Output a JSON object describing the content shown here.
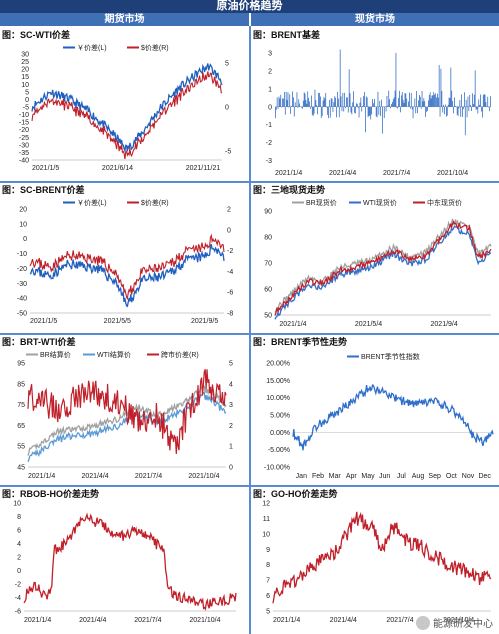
{
  "banner": "原油价格趋势",
  "left_header": "期货市场",
  "right_header": "现货市场",
  "watermark": "能源研发中心",
  "charts": [
    {
      "id": "sc-wti",
      "title": "图：SC-WTI价差",
      "type": "line",
      "legend": [
        "￥价差(L)",
        "$价差(R)"
      ],
      "colors": [
        "#1f5fbf",
        "#c0202a"
      ],
      "x_ticks": [
        "2021/1/5",
        "2021/6/14",
        "2021/11/21"
      ],
      "y_left": [
        -40,
        -35,
        -30,
        -25,
        -20,
        -15,
        -10,
        -5,
        0,
        5,
        10,
        15,
        20,
        25,
        30
      ],
      "y_right": [
        -5,
        0,
        5
      ],
      "ylim_left": [
        -40,
        30
      ],
      "ylim_right": [
        -6,
        6
      ]
    },
    {
      "id": "brent-basis",
      "title": "图：BRENT基差",
      "type": "bar",
      "colors": [
        "#1f5fbf"
      ],
      "x_ticks": [
        "2021/1/4",
        "2021/4/4",
        "2021/7/4",
        "2021/10/4"
      ],
      "y_left": [
        -3,
        -2,
        -1,
        0,
        1,
        2,
        3
      ],
      "ylim_left": [
        -3.2,
        3.4
      ]
    },
    {
      "id": "sc-brent",
      "title": "图：SC-BRENT价差",
      "type": "line",
      "legend": [
        "￥价差(L)",
        "$价差(R)"
      ],
      "colors": [
        "#1f5fbf",
        "#c0202a"
      ],
      "x_ticks": [
        "2021/1/5",
        "2021/5/5",
        "2021/9/5"
      ],
      "y_left": [
        -50,
        -40,
        -30,
        -20,
        -10,
        0,
        10,
        20
      ],
      "y_right": [
        -8,
        -6,
        -4,
        -2,
        0,
        2
      ],
      "ylim_left": [
        -50,
        20
      ],
      "ylim_right": [
        -8,
        2
      ]
    },
    {
      "id": "spot",
      "title": "图：三地现货走势",
      "type": "line",
      "legend": [
        "BR现货价",
        "WTI现货价",
        "中东现货价"
      ],
      "colors": [
        "#a0a0a0",
        "#2f6fc9",
        "#c0202a"
      ],
      "x_ticks": [
        "2021/1/4",
        "2021/5/4",
        "2021/9/4"
      ],
      "y_left": [
        50,
        60,
        70,
        80,
        90
      ],
      "ylim_left": [
        50,
        90
      ]
    },
    {
      "id": "brt-wti",
      "title": "图：BRT-WTI价差",
      "type": "line",
      "legend": [
        "BR结算价",
        "WTI结算价",
        "跨市价差(R)"
      ],
      "colors": [
        "#a0a0a0",
        "#5b9bd5",
        "#c0202a"
      ],
      "x_ticks": [
        "2021/1/4",
        "2021/4/4",
        "2021/7/4",
        "2021/10/4"
      ],
      "y_left": [
        45,
        55,
        65,
        75,
        85,
        95
      ],
      "y_right": [
        0,
        1,
        2,
        3,
        4,
        5
      ],
      "ylim_left": [
        45,
        95
      ],
      "ylim_right": [
        0,
        5
      ]
    },
    {
      "id": "brent-season",
      "title": "图：BRENT季节性走势",
      "type": "line",
      "legend": [
        "BRENT季节性指数"
      ],
      "colors": [
        "#2f6fc9"
      ],
      "x_ticks": [
        "Jan",
        "Feb",
        "Mar",
        "Apr",
        "May",
        "Jun",
        "Jul",
        "Aug",
        "Sep",
        "Oct",
        "Nov",
        "Dec"
      ],
      "y_left": [
        "-10.00%",
        "-5.00%",
        "0.00%",
        "5.00%",
        "10.00%",
        "15.00%",
        "20.00%"
      ],
      "ylim_left": [
        -10,
        20
      ]
    },
    {
      "id": "rbob-ho",
      "title": "图：RBOB-HO价差走势",
      "type": "line",
      "colors": [
        "#c0202a"
      ],
      "x_ticks": [
        "2021/1/4",
        "2021/4/4",
        "2021/7/4",
        "2021/10/4"
      ],
      "y_left": [
        -6,
        -4,
        -2,
        0,
        2,
        4,
        6,
        8,
        10
      ],
      "ylim_left": [
        -6,
        10
      ]
    },
    {
      "id": "go-ho",
      "title": "图：GO-HO价差走势",
      "type": "line",
      "colors": [
        "#c0202a"
      ],
      "x_ticks": [
        "2021/1/4",
        "2021/4/4",
        "2021/7/4",
        "2021/10/4"
      ],
      "y_left": [
        5,
        6,
        7,
        8,
        9,
        10,
        11,
        12
      ],
      "ylim_left": [
        5,
        12
      ]
    }
  ],
  "chart_data": [
    {
      "type": "line",
      "title": "图：SC-WTI价差",
      "series": [
        {
          "name": "￥价差(L)",
          "x": [
            "2021/1/5",
            "2021/3/1",
            "2021/5/1",
            "2021/6/14",
            "2021/8/1",
            "2021/10/1",
            "2021/11/21",
            "2021/12/20"
          ],
          "values": [
            -5,
            5,
            -10,
            -33,
            -20,
            5,
            20,
            12
          ]
        },
        {
          "name": "$价差(R)",
          "x": [
            "2021/1/5",
            "2021/3/1",
            "2021/5/1",
            "2021/6/14",
            "2021/8/1",
            "2021/10/1",
            "2021/11/21",
            "2021/12/20"
          ],
          "values": [
            0,
            1,
            -1,
            -4,
            -2,
            1,
            3,
            2
          ]
        }
      ]
    },
    {
      "type": "bar",
      "title": "图：BRENT基差",
      "x": [
        "2021/1/4",
        "2021/4/4",
        "2021/7/4",
        "2021/10/4"
      ],
      "values": [
        0.4,
        0.6,
        0.8,
        0.3
      ]
    },
    {
      "type": "line",
      "title": "图：SC-BRENT价差",
      "series": [
        {
          "name": "￥价差(L)",
          "x": [
            "2021/1/5",
            "2021/3/1",
            "2021/5/5",
            "2021/7/1",
            "2021/9/5",
            "2021/11/1",
            "2021/12/20"
          ],
          "values": [
            -20,
            -18,
            -22,
            -45,
            -25,
            -15,
            -10
          ]
        },
        {
          "name": "$价差(R)",
          "x": [
            "2021/1/5",
            "2021/3/1",
            "2021/5/5",
            "2021/7/1",
            "2021/9/5",
            "2021/11/1",
            "2021/12/20"
          ],
          "values": [
            -3,
            -3,
            -3.5,
            -6.5,
            -4,
            -2.5,
            -1.5
          ]
        }
      ]
    },
    {
      "type": "line",
      "title": "图：三地现货走势",
      "series": [
        {
          "name": "BR现货价",
          "x": [
            "2021/1/4",
            "2021/3/4",
            "2021/5/4",
            "2021/7/4",
            "2021/9/4",
            "2021/10/24",
            "2021/12/20"
          ],
          "values": [
            51,
            64,
            68,
            75,
            73,
            86,
            75
          ]
        },
        {
          "name": "WTI现货价",
          "x": [
            "2021/1/4",
            "2021/3/4",
            "2021/5/4",
            "2021/7/4",
            "2021/9/4",
            "2021/10/24",
            "2021/12/20"
          ],
          "values": [
            48,
            61,
            65,
            73,
            70,
            84,
            72
          ]
        },
        {
          "name": "中东现货价",
          "x": [
            "2021/1/4",
            "2021/3/4",
            "2021/5/4",
            "2021/7/4",
            "2021/9/4",
            "2021/10/24",
            "2021/12/20"
          ],
          "values": [
            50,
            62,
            66,
            72,
            71,
            84,
            74
          ]
        }
      ]
    },
    {
      "type": "line",
      "title": "图：BRT-WTI价差",
      "series": [
        {
          "name": "BR结算价",
          "x": [
            "2021/1/4",
            "2021/4/4",
            "2021/7/4",
            "2021/10/4",
            "2021/12/20"
          ],
          "values": [
            52,
            63,
            75,
            82,
            75
          ]
        },
        {
          "name": "WTI结算价",
          "x": [
            "2021/1/4",
            "2021/4/4",
            "2021/7/4",
            "2021/10/4",
            "2021/12/20"
          ],
          "values": [
            49,
            60,
            73,
            79,
            72
          ]
        },
        {
          "name": "跨市价差(R)",
          "x": [
            "2021/1/4",
            "2021/4/4",
            "2021/7/4",
            "2021/10/4",
            "2021/12/20"
          ],
          "values": [
            3.5,
            3.3,
            2.0,
            3.0,
            3.2
          ]
        }
      ]
    },
    {
      "type": "line",
      "title": "图：BRENT季节性走势",
      "series": [
        {
          "name": "BRENT季节性指数",
          "x": [
            "Jan",
            "Feb",
            "Mar",
            "Apr",
            "May",
            "Jun",
            "Jul",
            "Aug",
            "Sep",
            "Oct",
            "Nov",
            "Dec"
          ],
          "values": [
            0,
            2,
            5,
            9,
            13,
            11,
            9,
            9,
            7,
            4,
            -1,
            0
          ]
        }
      ]
    },
    {
      "type": "line",
      "title": "图：RBOB-HO价差走势",
      "series": [
        {
          "x": [
            "2021/1/4",
            "2021/3/1",
            "2021/4/4",
            "2021/7/4",
            "2021/8/15",
            "2021/10/4",
            "2021/12/20"
          ],
          "values": [
            -4,
            -2,
            8,
            6,
            5,
            -5,
            -4
          ]
        }
      ]
    },
    {
      "type": "line",
      "title": "图：GO-HO价差走势",
      "series": [
        {
          "x": [
            "2021/1/4",
            "2021/4/4",
            "2021/6/1",
            "2021/7/4",
            "2021/10/4",
            "2021/12/20"
          ],
          "values": [
            6,
            9,
            11,
            10,
            8,
            7
          ]
        }
      ]
    }
  ]
}
